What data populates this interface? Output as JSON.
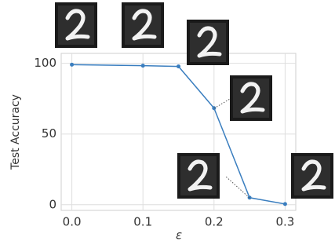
{
  "chart_data": {
    "type": "line",
    "x_label": "ε",
    "y_label": "Test Accuracy",
    "x": [
      0,
      0.1,
      0.15,
      0.2,
      0.25,
      0.3
    ],
    "series": [
      {
        "name": "Test Accuracy",
        "color": "#3a7ebf",
        "values": [
          99,
          98.3,
          97.8,
          68.3,
          5,
          0.5
        ]
      }
    ],
    "xlim": [
      -0.015,
      0.315
    ],
    "ylim": [
      -4,
      107
    ],
    "xticks": [
      {
        "value": 0,
        "label": "0.0"
      },
      0.1,
      0.2,
      0.3
    ],
    "yticks": [
      0,
      50,
      100
    ],
    "grid": true
  }
}
